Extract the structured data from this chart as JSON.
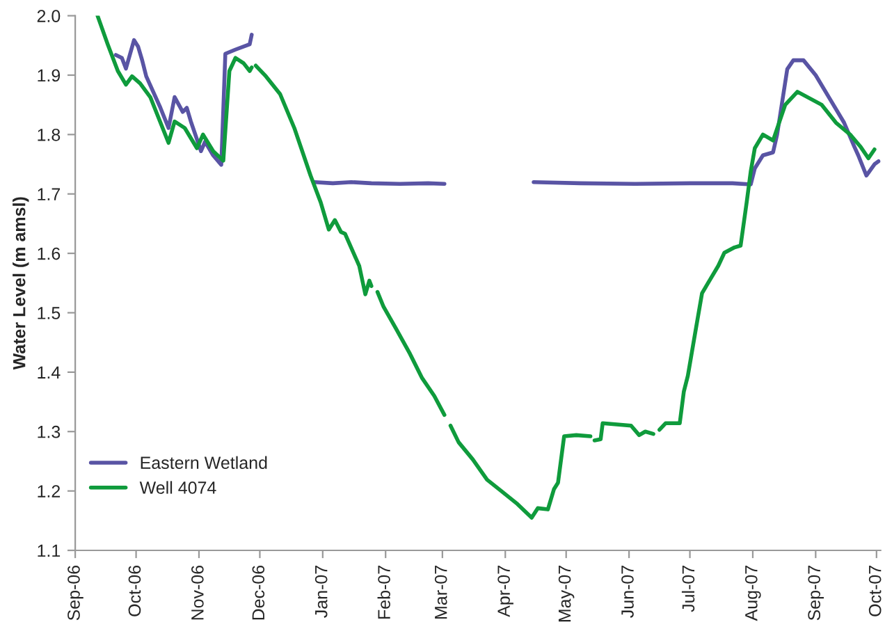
{
  "chart_data": {
    "type": "line",
    "ylabel": "Water Level (m amsl)",
    "xlim": [
      "2006-09-01",
      "2007-10-03"
    ],
    "xticks": [
      {
        "value": "2006-09-01",
        "label": "Sep-06"
      },
      {
        "value": "2006-10-01",
        "label": "Oct-06"
      },
      {
        "value": "2006-11-01",
        "label": "Nov-06"
      },
      {
        "value": "2006-12-01",
        "label": "Dec-06"
      },
      {
        "value": "2007-01-01",
        "label": "Jan-07"
      },
      {
        "value": "2007-02-01",
        "label": "Feb-07"
      },
      {
        "value": "2007-03-01",
        "label": "Mar-07"
      },
      {
        "value": "2007-04-01",
        "label": "Apr-07"
      },
      {
        "value": "2007-05-01",
        "label": "May-07"
      },
      {
        "value": "2007-06-01",
        "label": "Jun-07"
      },
      {
        "value": "2007-07-01",
        "label": "Jul-07"
      },
      {
        "value": "2007-08-01",
        "label": "Aug-07"
      },
      {
        "value": "2007-09-01",
        "label": "Sep-07"
      },
      {
        "value": "2007-10-01",
        "label": "Oct-07"
      }
    ],
    "ylim": [
      1.1,
      2.0
    ],
    "yticks": [
      1.1,
      1.2,
      1.3,
      1.4,
      1.5,
      1.6,
      1.7,
      1.8,
      1.9,
      {
        "value": 2.0,
        "label": "2.0"
      }
    ],
    "grid": false,
    "legend": "bottom left",
    "marker": "none",
    "line_style": "solid",
    "series": [
      {
        "name": "Eastern Wetland",
        "color": "#5954a4",
        "x": [
          "2006-09-21",
          "2006-09-24",
          "2006-09-26",
          "2006-09-30",
          "2006-10-02",
          "2006-10-04",
          "2006-10-06",
          "2006-10-13",
          "2006-10-17",
          "2006-10-20",
          "2006-10-24",
          "2006-10-26",
          "2006-10-28",
          "2006-11-02",
          "2006-11-04",
          "2006-11-08",
          "2006-11-12",
          "2006-11-14",
          "2006-11-19",
          "2006-11-26",
          "2006-11-27",
          "2006-12-10",
          "2006-12-28",
          "2007-01-06",
          "2007-01-15",
          "2007-01-25",
          "2007-02-08",
          "2007-02-22",
          "2007-03-02",
          "2007-03-20",
          "2007-04-15",
          "2007-05-08",
          "2007-06-04",
          "2007-07-01",
          "2007-07-22",
          "2007-07-31",
          "2007-08-02",
          "2007-08-06",
          "2007-08-11",
          "2007-08-13",
          "2007-08-18",
          "2007-08-21",
          "2007-08-26",
          "2007-09-01",
          "2007-09-08",
          "2007-09-15",
          "2007-09-20",
          "2007-09-22",
          "2007-09-26",
          "2007-09-30",
          "2007-10-02"
        ],
        "values": [
          1.934,
          1.929,
          1.911,
          1.959,
          1.948,
          1.925,
          1.898,
          1.845,
          1.811,
          1.863,
          1.838,
          1.845,
          1.822,
          1.772,
          1.788,
          1.765,
          1.749,
          1.936,
          1.943,
          1.952,
          1.968,
          null,
          1.72,
          1.718,
          1.72,
          1.718,
          1.717,
          1.718,
          1.717,
          null,
          1.72,
          1.718,
          1.717,
          1.718,
          1.718,
          1.716,
          1.743,
          1.765,
          1.77,
          1.8,
          1.91,
          1.925,
          1.925,
          1.9,
          1.86,
          1.82,
          1.78,
          1.765,
          1.731,
          1.75,
          1.755
        ]
      },
      {
        "name": "Well 4074",
        "color": "#0f9b3c",
        "x": [
          "2006-09-12",
          "2006-09-17",
          "2006-09-22",
          "2006-09-26",
          "2006-09-29",
          "2006-10-03",
          "2006-10-08",
          "2006-10-17",
          "2006-10-20",
          "2006-10-25",
          "2006-10-31",
          "2006-11-03",
          "2006-11-08",
          "2006-11-13",
          "2006-11-16",
          "2006-11-19",
          "2006-11-23",
          "2006-11-26",
          "2006-11-27",
          "2006-11-28",
          "2006-11-29",
          "2006-12-04",
          "2006-12-11",
          "2006-12-18",
          "2006-12-26",
          "2006-12-31",
          "2007-01-04",
          "2007-01-07",
          "2007-01-10",
          "2007-01-12",
          "2007-01-19",
          "2007-01-22",
          "2007-01-24",
          "2007-01-25",
          "2007-01-26",
          "2007-01-28",
          "2007-01-31",
          "2007-02-06",
          "2007-02-13",
          "2007-02-19",
          "2007-02-25",
          "2007-03-02",
          "2007-03-03",
          "2007-03-05",
          "2007-03-09",
          "2007-03-16",
          "2007-03-23",
          "2007-03-30",
          "2007-04-07",
          "2007-04-14",
          "2007-04-17",
          "2007-04-22",
          "2007-04-25",
          "2007-04-27",
          "2007-04-30",
          "2007-05-06",
          "2007-05-13",
          "2007-05-14",
          "2007-05-15",
          "2007-05-18",
          "2007-05-19",
          "2007-06-02",
          "2007-06-06",
          "2007-06-09",
          "2007-06-13",
          "2007-06-14",
          "2007-06-16",
          "2007-06-19",
          "2007-06-26",
          "2007-06-28",
          "2007-06-30",
          "2007-07-04",
          "2007-07-07",
          "2007-07-11",
          "2007-07-15",
          "2007-07-18",
          "2007-07-23",
          "2007-07-26",
          "2007-07-29",
          "2007-07-31",
          "2007-08-02",
          "2007-08-06",
          "2007-08-11",
          "2007-08-17",
          "2007-08-23",
          "2007-09-04",
          "2007-09-11",
          "2007-09-18",
          "2007-09-23",
          "2007-09-27",
          "2007-09-30"
        ],
        "values": [
          2.0,
          1.952,
          1.907,
          1.884,
          1.898,
          1.886,
          1.863,
          1.786,
          1.822,
          1.811,
          1.777,
          1.8,
          1.772,
          1.756,
          1.907,
          1.929,
          1.92,
          1.907,
          1.913,
          null,
          1.916,
          1.898,
          1.868,
          1.811,
          1.731,
          1.686,
          1.64,
          1.656,
          1.636,
          1.633,
          1.579,
          1.531,
          1.554,
          1.545,
          null,
          1.535,
          1.51,
          1.474,
          1.431,
          1.39,
          1.36,
          1.328,
          null,
          1.31,
          1.282,
          1.253,
          1.219,
          1.2,
          1.178,
          1.155,
          1.171,
          1.169,
          1.203,
          1.214,
          1.292,
          1.294,
          1.292,
          null,
          1.285,
          1.287,
          1.314,
          1.31,
          1.294,
          1.3,
          1.296,
          null,
          1.303,
          1.314,
          1.314,
          1.367,
          1.394,
          1.474,
          1.533,
          1.556,
          1.579,
          1.601,
          1.61,
          1.613,
          1.686,
          1.738,
          1.777,
          1.8,
          1.79,
          1.85,
          1.872,
          1.85,
          1.82,
          1.8,
          1.78,
          1.76,
          1.775
        ]
      }
    ]
  }
}
